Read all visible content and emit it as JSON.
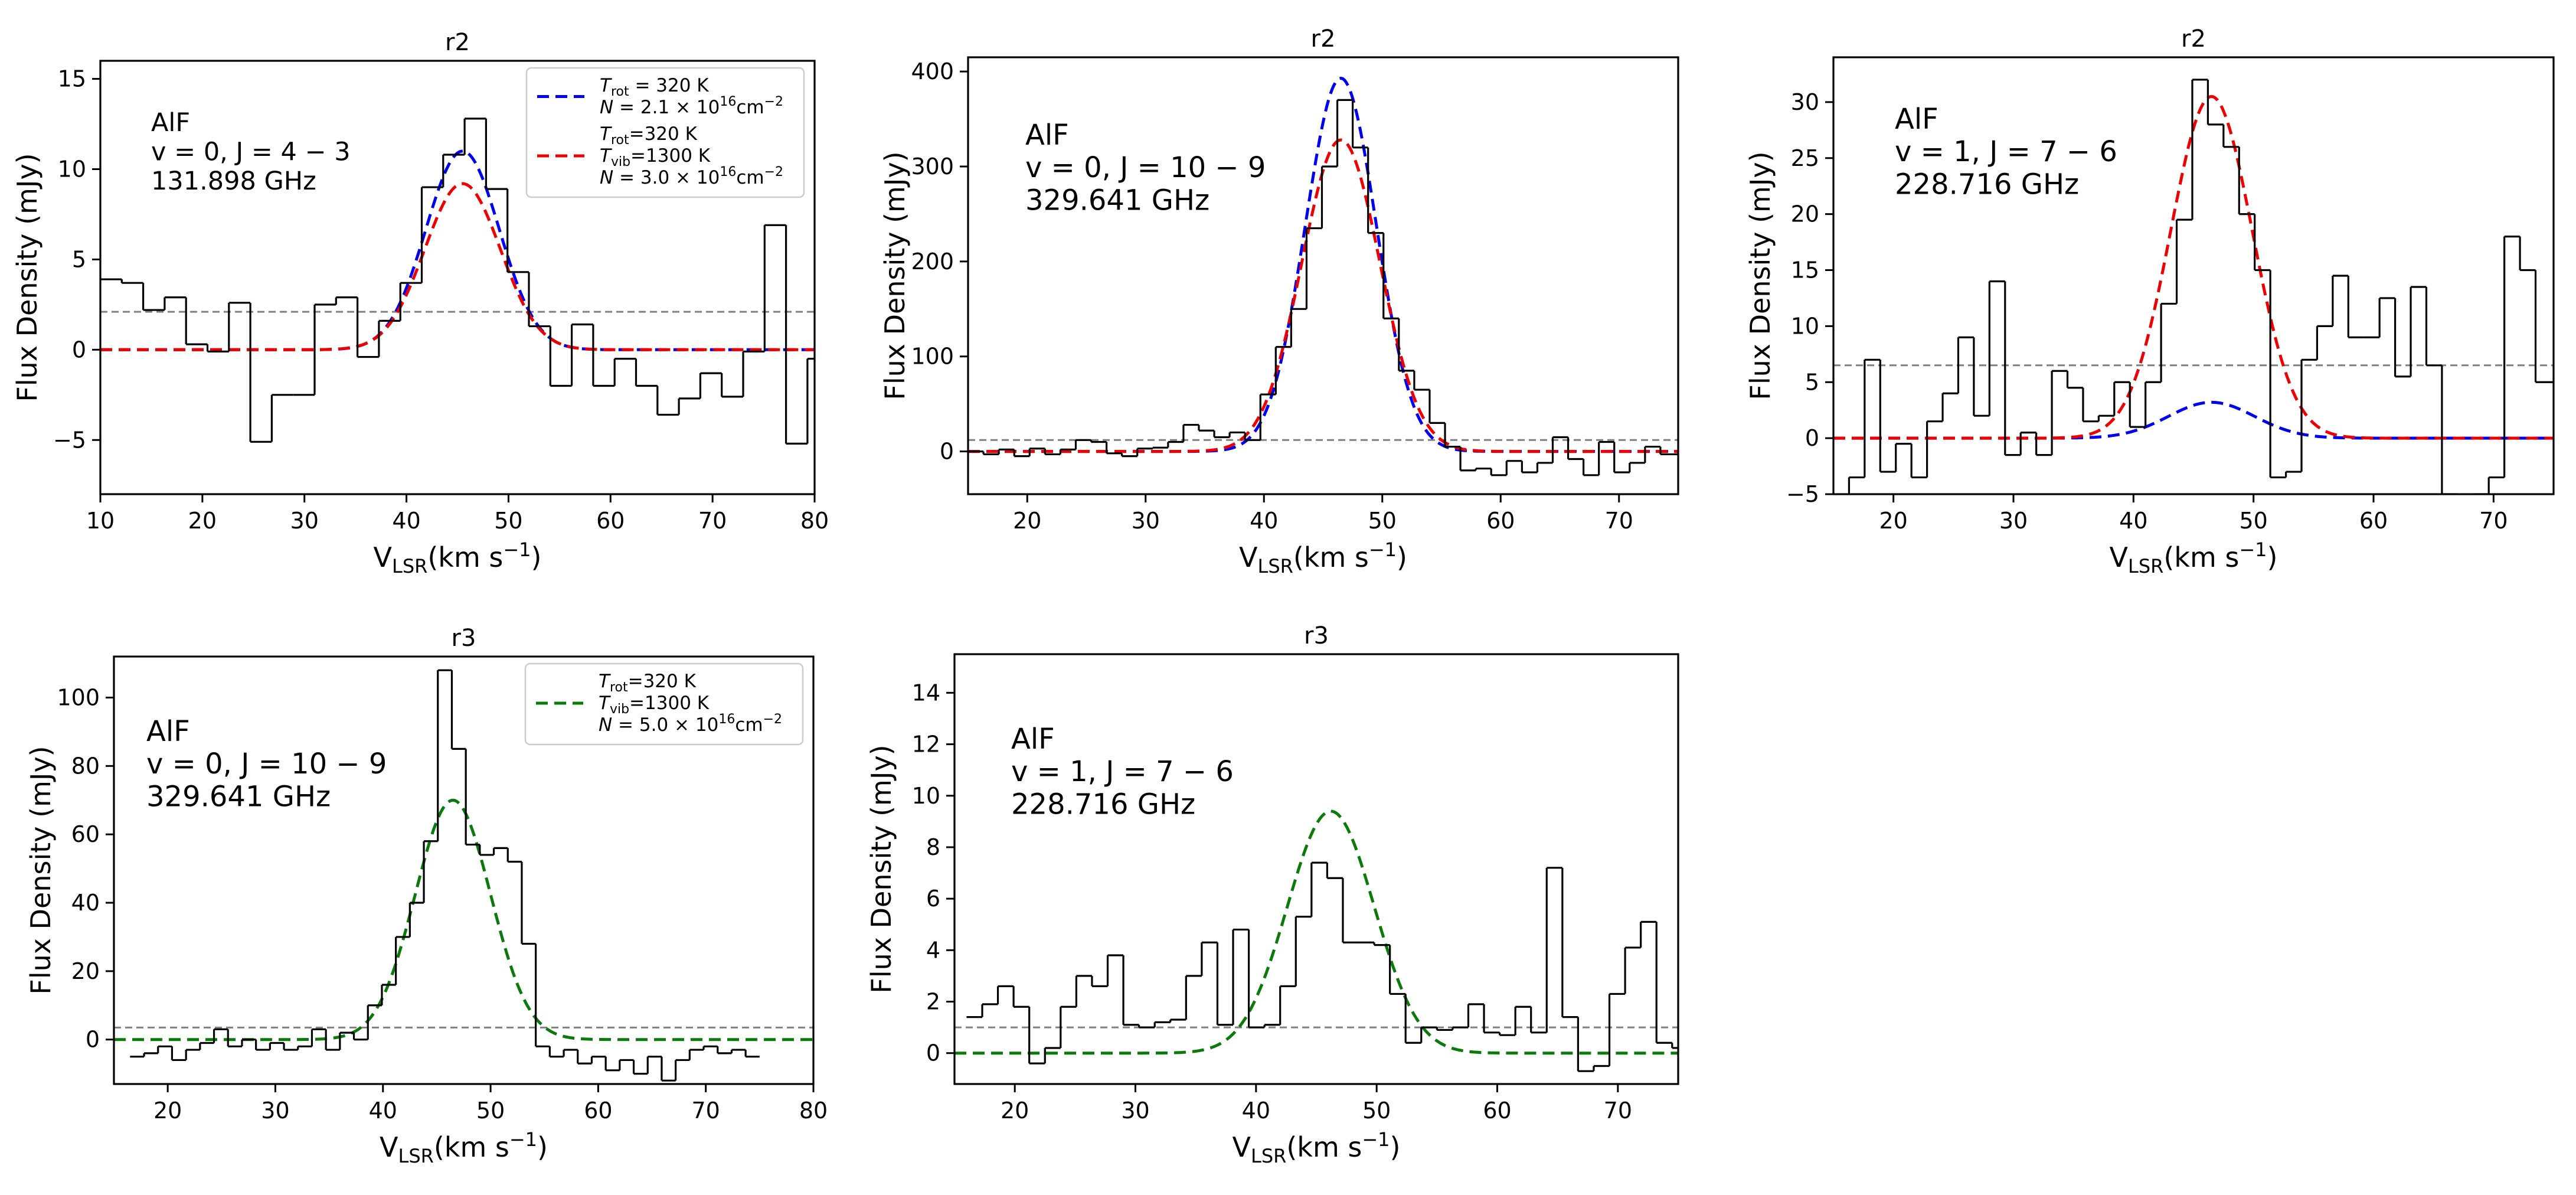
{
  "figure": {
    "common": {
      "ylabel": "Flux Density (mJy)",
      "xlabel_main": "V",
      "xlabel_sub": "LSR",
      "xlabel_units": "(km s",
      "xlabel_exp": "−1",
      "xlabel_close": ")"
    },
    "colors": {
      "obs": "#000000",
      "blue": "#0000ee",
      "red": "#ee0000",
      "green": "#0a7a0a",
      "noise": "#808080"
    }
  },
  "chart_data": [
    {
      "type": "line",
      "title": "r2",
      "xlim": [
        10,
        80
      ],
      "ylim": [
        -8,
        16
      ],
      "xticks": [
        10,
        20,
        30,
        40,
        50,
        60,
        70,
        80
      ],
      "yticks": [
        -5,
        0,
        5,
        10,
        15
      ],
      "annotation": [
        "AlF",
        "v = 0, J = 4 − 3",
        "131.898 GHz"
      ],
      "noise_level": 2.1,
      "observed_step": {
        "edges": [
          10,
          12.1,
          14.2,
          16.3,
          18.4,
          20.5,
          22.6,
          24.7,
          26.8,
          28.9,
          31,
          33.1,
          35.2,
          37.3,
          39.4,
          41.5,
          43.6,
          45.7,
          47.8,
          49.9,
          52,
          54.1,
          56.2,
          58.3,
          60.4,
          62.5,
          64.6,
          66.7,
          68.8,
          70.9,
          73,
          75.1,
          77.2,
          79.3,
          80
        ],
        "values": [
          3.9,
          3.7,
          2.2,
          2.9,
          0.3,
          -0.1,
          2.6,
          -5.1,
          -2.5,
          -2.5,
          2.5,
          2.9,
          -0.4,
          1.6,
          3.7,
          9.0,
          10.8,
          12.8,
          8.9,
          4.3,
          1.3,
          -2.0,
          1.4,
          -2.0,
          -0.5,
          -2.0,
          -3.6,
          -2.7,
          -1.3,
          -2.6,
          -0.1,
          6.9,
          -5.2,
          -0.5
        ]
      },
      "models": [
        {
          "name": "T_rot = 320 K, N = 2.1×10^16 cm^-2",
          "color_key": "blue",
          "amplitude": 11.0,
          "center": 45.5,
          "sigma": 3.6
        },
        {
          "name": "T_rot = 320 K, T_vib = 1300 K, N = 3.0×10^16 cm^-2",
          "color_key": "red",
          "amplitude": 9.2,
          "center": 45.5,
          "sigma": 3.7
        }
      ],
      "legend": {
        "placement": "upper-right",
        "entries": [
          {
            "color_key": "blue",
            "lines": [
              {
                "sym": "T",
                "sub": "rot",
                "rest": " = 320 K"
              },
              {
                "sym": "N",
                "rest": " = 2.1 × 10",
                "sup": "16",
                "tail": "cm",
                "tailsup": "−2"
              }
            ]
          },
          {
            "color_key": "red",
            "lines": [
              {
                "sym": "T",
                "sub": "rot",
                "rest": "=320 K"
              },
              {
                "sym": "T",
                "sub": "vib",
                "rest": "=1300 K"
              },
              {
                "sym": "N",
                "rest": " = 3.0 × 10",
                "sup": "16",
                "tail": "cm",
                "tailsup": "−2"
              }
            ]
          }
        ]
      }
    },
    {
      "type": "line",
      "title": "r2",
      "xlim": [
        15,
        75
      ],
      "ylim": [
        -45,
        415
      ],
      "xticks": [
        20,
        30,
        40,
        50,
        60,
        70
      ],
      "yticks": [
        0,
        100,
        200,
        300,
        400
      ],
      "annotation": [
        "AlF",
        "v = 0, J = 10 − 9",
        "329.641 GHz"
      ],
      "noise_level": 12,
      "observed_step": {
        "edges": [
          15,
          16.3,
          17.6,
          18.9,
          20.2,
          21.5,
          22.8,
          24.1,
          25.4,
          26.7,
          28,
          29.3,
          30.6,
          31.9,
          33.2,
          34.5,
          35.8,
          37.1,
          38.4,
          39.7,
          41,
          42.3,
          43.6,
          44.9,
          46.2,
          47.5,
          48.8,
          50.1,
          51.4,
          52.7,
          54,
          55.3,
          56.6,
          57.9,
          59.2,
          60.5,
          61.8,
          63.1,
          64.4,
          65.7,
          67,
          68.3,
          69.6,
          70.9,
          72.2,
          73.5,
          75
        ],
        "values": [
          0,
          -3,
          2,
          -5,
          3,
          -3,
          2,
          12,
          10,
          -2,
          -5,
          3,
          4,
          10,
          28,
          22,
          15,
          20,
          12,
          60,
          110,
          150,
          235,
          300,
          370,
          320,
          230,
          140,
          85,
          65,
          30,
          5,
          -20,
          -18,
          -25,
          -10,
          -22,
          -12,
          15,
          -8,
          -25,
          10,
          -22,
          -12,
          5,
          -3
        ]
      },
      "models": [
        {
          "name": "blue model",
          "color_key": "blue",
          "amplitude": 393,
          "center": 46.5,
          "sigma": 3.0
        },
        {
          "name": "red model",
          "color_key": "red",
          "amplitude": 328,
          "center": 46.5,
          "sigma": 3.3
        }
      ]
    },
    {
      "type": "line",
      "title": "r2",
      "xlim": [
        15,
        75
      ],
      "ylim": [
        -5,
        34
      ],
      "xticks": [
        20,
        30,
        40,
        50,
        60,
        70
      ],
      "yticks": [
        -5,
        0,
        5,
        10,
        15,
        20,
        25,
        30
      ],
      "annotation": [
        "AlF",
        "v = 1, J = 7 − 6",
        "228.716 GHz"
      ],
      "noise_level": 6.5,
      "observed_step": {
        "edges": [
          15,
          16.3,
          17.6,
          18.9,
          20.2,
          21.5,
          22.8,
          24.1,
          25.4,
          26.7,
          28,
          29.3,
          30.6,
          31.9,
          33.2,
          34.5,
          35.8,
          37.1,
          38.4,
          39.7,
          41,
          42.3,
          43.6,
          44.9,
          46.2,
          47.5,
          48.8,
          50.1,
          51.4,
          52.7,
          54,
          55.3,
          56.6,
          57.9,
          59.2,
          60.5,
          61.8,
          63.1,
          64.4,
          65.7,
          67,
          68.3,
          69.6,
          70.9,
          72.2,
          73.5,
          75
        ],
        "values": [
          -8,
          -3.5,
          7.0,
          -3.0,
          -0.5,
          -3.5,
          1.5,
          4.0,
          9.0,
          2.0,
          14.0,
          -1.5,
          0.5,
          -1.5,
          6.0,
          4.5,
          1.5,
          2.0,
          5.0,
          1.0,
          5.0,
          12.0,
          19.5,
          32.0,
          28.0,
          26.0,
          20.0,
          15.0,
          -3.5,
          -3.0,
          7.0,
          10.0,
          14.5,
          9.0,
          9.0,
          12.5,
          5.5,
          13.5,
          6.5,
          -5.0,
          -9.0,
          -5.0,
          -3.5,
          18.0,
          15.0,
          5.0
        ]
      },
      "models": [
        {
          "name": "blue model",
          "color_key": "blue",
          "amplitude": 3.2,
          "center": 46.5,
          "sigma": 3.6
        },
        {
          "name": "red model",
          "color_key": "red",
          "amplitude": 30.5,
          "center": 46.5,
          "sigma": 3.4
        }
      ]
    },
    {
      "type": "line",
      "title": "r3",
      "xlim": [
        15,
        80
      ],
      "ylim": [
        -13,
        112
      ],
      "xticks": [
        20,
        30,
        40,
        50,
        60,
        70,
        80
      ],
      "yticks": [
        0,
        20,
        40,
        60,
        80,
        100
      ],
      "annotation": [
        "AlF",
        "v = 0, J = 10 − 9",
        "329.641 GHz"
      ],
      "noise_level": 3.5,
      "observed_step": {
        "edges": [
          16.5,
          17.8,
          19.1,
          20.4,
          21.7,
          23,
          24.3,
          25.6,
          26.9,
          28.2,
          29.5,
          30.8,
          32.1,
          33.4,
          34.7,
          36,
          37.3,
          38.6,
          39.9,
          41.2,
          42.5,
          43.8,
          45.1,
          46.4,
          47.7,
          49,
          50.3,
          51.6,
          52.9,
          54.2,
          55.5,
          56.8,
          58.1,
          59.4,
          60.7,
          62,
          63.3,
          64.6,
          65.9,
          67.2,
          68.5,
          69.8,
          71.1,
          72.4,
          73.7,
          75
        ],
        "values": [
          -5,
          -4,
          -2,
          -6,
          -3,
          -1,
          3,
          -2,
          0,
          -3,
          -1,
          -3,
          -2,
          3,
          -3,
          2,
          0,
          10,
          16,
          30,
          40,
          58,
          108,
          85,
          57,
          54,
          56,
          52,
          28,
          -2,
          -5,
          -3,
          -7,
          -5,
          -9,
          -6,
          -10,
          -5,
          -12,
          -6,
          -3,
          -2,
          -4,
          -3,
          -5
        ]
      },
      "models": [
        {
          "name": "T_rot = 320 K, T_vib = 1300 K, N = 5.0×10^16 cm^-2",
          "color_key": "green",
          "amplitude": 70,
          "center": 46.5,
          "sigma": 3.5
        }
      ],
      "legend": {
        "placement": "upper-right",
        "entries": [
          {
            "color_key": "green",
            "lines": [
              {
                "sym": "T",
                "sub": "rot",
                "rest": "=320 K"
              },
              {
                "sym": "T",
                "sub": "vib",
                "rest": "=1300 K"
              },
              {
                "sym": "N",
                "rest": " = 5.0 × 10",
                "sup": "16",
                "tail": "cm",
                "tailsup": "−2"
              }
            ]
          }
        ]
      }
    },
    {
      "type": "line",
      "title": "r3",
      "xlim": [
        15,
        75
      ],
      "ylim": [
        -1.2,
        15.5
      ],
      "xticks": [
        20,
        30,
        40,
        50,
        60,
        70
      ],
      "yticks": [
        0,
        2,
        4,
        6,
        8,
        10,
        12,
        14
      ],
      "annotation": [
        "AlF",
        "v = 1, J = 7 − 6",
        "228.716 GHz"
      ],
      "noise_level": 1.0,
      "observed_step": {
        "edges": [
          16,
          17.3,
          18.6,
          19.9,
          21.2,
          22.5,
          23.8,
          25.1,
          26.4,
          27.7,
          29,
          30.3,
          31.6,
          32.9,
          34.2,
          35.5,
          36.8,
          38.1,
          39.4,
          40.7,
          42,
          43.3,
          44.6,
          45.9,
          47.2,
          48.5,
          49.8,
          51.1,
          52.4,
          53.7,
          55,
          56.3,
          57.6,
          58.9,
          60.2,
          61.5,
          62.8,
          64.1,
          65.4,
          66.7,
          68,
          69.3,
          70.6,
          71.9,
          73.2,
          74.5,
          75
        ],
        "values": [
          1.4,
          1.9,
          2.6,
          1.8,
          -0.4,
          0.2,
          1.8,
          3.0,
          2.6,
          3.8,
          1.1,
          1.0,
          1.2,
          1.3,
          3.0,
          4.3,
          1.1,
          4.8,
          1.0,
          1.1,
          2.6,
          5.3,
          7.4,
          6.8,
          4.3,
          4.3,
          4.2,
          2.3,
          0.4,
          1.0,
          0.9,
          1.0,
          1.9,
          0.8,
          0.7,
          1.8,
          0.8,
          7.2,
          1.4,
          -0.7,
          -0.5,
          2.3,
          4.1,
          5.1,
          0.4,
          0.2
        ]
      },
      "models": [
        {
          "name": "green model",
          "color_key": "green",
          "amplitude": 9.4,
          "center": 46.2,
          "sigma": 3.6
        }
      ]
    }
  ]
}
